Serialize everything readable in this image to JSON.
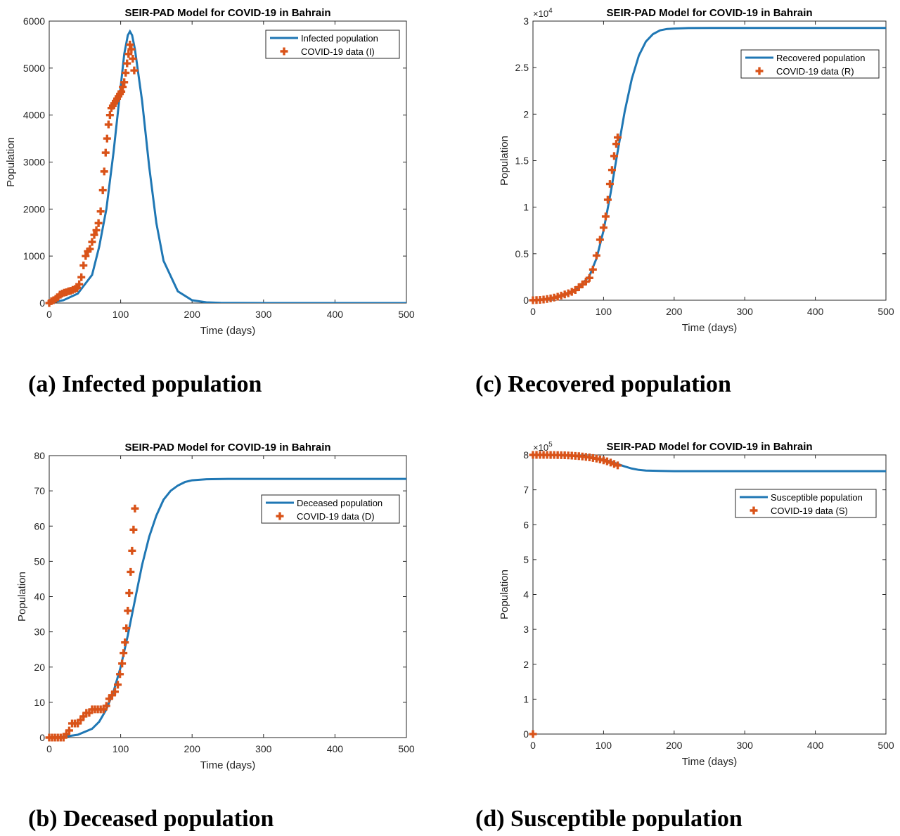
{
  "colors": {
    "model_line": "#1f77b4",
    "data_marker": "#d95319",
    "axis": "#262626"
  },
  "captions": {
    "a": "(a) Infected population",
    "b": "(b) Deceased population",
    "c": "(c) Recovered population",
    "d": "(d) Susceptible population"
  },
  "chart_data": [
    {
      "id": "a",
      "type": "line",
      "title": "SEIR-PAD Model for COVID-19 in Bahrain",
      "xlabel": "Time (days)",
      "ylabel": "Population",
      "xlim": [
        0,
        500
      ],
      "ylim": [
        0,
        6000
      ],
      "xticks": [
        0,
        100,
        200,
        300,
        400,
        500
      ],
      "yticks": [
        0,
        1000,
        2000,
        3000,
        4000,
        5000,
        6000
      ],
      "ytick_labels": [
        "0",
        "1000",
        "2000",
        "3000",
        "4000",
        "5000",
        "6000"
      ],
      "exponent_label": "",
      "legend_position": "top-right",
      "series": [
        {
          "name": "Infected population",
          "style": "line",
          "x": [
            0,
            20,
            40,
            60,
            70,
            80,
            90,
            100,
            105,
            110,
            113,
            116,
            120,
            130,
            140,
            150,
            160,
            180,
            200,
            220,
            240,
            260,
            300,
            400,
            500
          ],
          "y": [
            0,
            60,
            200,
            600,
            1200,
            2000,
            3200,
            4600,
            5300,
            5700,
            5780,
            5700,
            5400,
            4300,
            2900,
            1700,
            900,
            250,
            60,
            15,
            4,
            1,
            0,
            0,
            0
          ]
        },
        {
          "name": "COVID-19 data (I)",
          "style": "marker",
          "x": [
            0,
            3,
            6,
            9,
            12,
            15,
            18,
            21,
            24,
            27,
            30,
            33,
            36,
            39,
            42,
            45,
            48,
            51,
            54,
            57,
            60,
            63,
            66,
            69,
            72,
            75,
            77,
            79,
            81,
            83,
            85,
            87,
            89,
            91,
            93,
            95,
            97,
            99,
            101,
            103,
            105,
            107,
            109,
            111,
            113,
            115,
            117,
            119
          ],
          "y": [
            0,
            40,
            60,
            90,
            120,
            180,
            200,
            220,
            230,
            250,
            260,
            280,
            300,
            320,
            400,
            550,
            800,
            1000,
            1100,
            1150,
            1300,
            1450,
            1550,
            1700,
            1950,
            2400,
            2800,
            3200,
            3500,
            3800,
            4000,
            4150,
            4200,
            4250,
            4300,
            4350,
            4400,
            4450,
            4500,
            4600,
            4700,
            4900,
            5100,
            5300,
            5500,
            5400,
            5200,
            4950
          ]
        }
      ]
    },
    {
      "id": "c",
      "type": "line",
      "title": "SEIR-PAD Model for COVID-19 in Bahrain",
      "xlabel": "Time (days)",
      "ylabel": "Population",
      "xlim": [
        0,
        500
      ],
      "ylim": [
        0,
        30000
      ],
      "xticks": [
        0,
        100,
        200,
        300,
        400,
        500
      ],
      "yticks": [
        0,
        5000,
        10000,
        15000,
        20000,
        25000,
        30000
      ],
      "ytick_labels": [
        "0",
        "0.5",
        "1",
        "1.5",
        "2",
        "2.5",
        "3"
      ],
      "exponent_label": "×10^4",
      "legend_position": "top-right",
      "series": [
        {
          "name": "Recovered population",
          "style": "line",
          "x": [
            0,
            20,
            40,
            60,
            80,
            90,
            100,
            110,
            120,
            130,
            140,
            150,
            160,
            170,
            180,
            190,
            200,
            220,
            250,
            300,
            400,
            500
          ],
          "y": [
            0,
            100,
            400,
            1000,
            2600,
            4500,
            7500,
            11500,
            16000,
            20300,
            23800,
            26300,
            27800,
            28600,
            29000,
            29150,
            29200,
            29250,
            29260,
            29260,
            29260,
            29260
          ]
        },
        {
          "name": "COVID-19 data (R)",
          "style": "marker",
          "x": [
            0,
            5,
            10,
            15,
            20,
            25,
            30,
            35,
            40,
            45,
            50,
            55,
            60,
            65,
            70,
            75,
            80,
            85,
            90,
            95,
            100,
            103,
            106,
            109,
            112,
            115,
            118,
            120
          ],
          "y": [
            0,
            20,
            40,
            80,
            130,
            200,
            280,
            380,
            500,
            620,
            750,
            900,
            1100,
            1400,
            1700,
            2000,
            2400,
            3300,
            4800,
            6500,
            7800,
            9000,
            10800,
            12500,
            14000,
            15500,
            16800,
            17500
          ]
        }
      ]
    },
    {
      "id": "b",
      "type": "line",
      "title": "SEIR-PAD Model for COVID-19 in Bahrain",
      "xlabel": "Time (days)",
      "ylabel": "Population",
      "xlim": [
        0,
        500
      ],
      "ylim": [
        0,
        80
      ],
      "xticks": [
        0,
        100,
        200,
        300,
        400,
        500
      ],
      "yticks": [
        0,
        10,
        20,
        30,
        40,
        50,
        60,
        70,
        80
      ],
      "ytick_labels": [
        "0",
        "10",
        "20",
        "30",
        "40",
        "50",
        "60",
        "70",
        "80"
      ],
      "exponent_label": "",
      "legend_position": "top-right",
      "series": [
        {
          "name": "Deceased population",
          "style": "line",
          "x": [
            0,
            20,
            40,
            60,
            70,
            80,
            90,
            100,
            110,
            120,
            130,
            140,
            150,
            160,
            170,
            180,
            190,
            200,
            220,
            250,
            300,
            400,
            500
          ],
          "y": [
            0,
            0.2,
            0.8,
            2.5,
            4.5,
            8,
            13,
            20,
            29,
            39,
            49,
            57,
            63,
            67.5,
            70,
            71.5,
            72.5,
            73,
            73.3,
            73.4,
            73.4,
            73.4,
            73.4
          ]
        },
        {
          "name": "COVID-19 data (D)",
          "style": "marker",
          "x": [
            0,
            4,
            8,
            12,
            16,
            20,
            24,
            28,
            32,
            36,
            40,
            44,
            48,
            52,
            56,
            60,
            64,
            68,
            72,
            76,
            80,
            84,
            88,
            92,
            96,
            99,
            102,
            104,
            106,
            108,
            110,
            112,
            114,
            116,
            118,
            120
          ],
          "y": [
            0,
            0,
            0,
            0,
            0,
            0,
            1,
            2,
            4,
            4,
            4,
            5,
            6,
            7,
            7,
            8,
            8,
            8,
            8,
            8,
            9,
            11,
            12,
            13,
            15,
            18,
            21,
            24,
            27,
            31,
            36,
            41,
            47,
            53,
            59,
            65
          ]
        }
      ]
    },
    {
      "id": "d",
      "type": "line",
      "title": "SEIR-PAD Model for COVID-19 in Bahrain",
      "xlabel": "Time (days)",
      "ylabel": "Population",
      "xlim": [
        0,
        500
      ],
      "ylim": [
        0,
        800000
      ],
      "xticks": [
        0,
        100,
        200,
        300,
        400,
        500
      ],
      "yticks": [
        0,
        100000,
        200000,
        300000,
        400000,
        500000,
        600000,
        700000,
        800000
      ],
      "ytick_labels": [
        "0",
        "1",
        "2",
        "3",
        "4",
        "5",
        "6",
        "7",
        "8"
      ],
      "exponent_label": "×10^5",
      "legend_position": "top-right",
      "series": [
        {
          "name": "Susceptible population",
          "style": "line",
          "x": [
            0,
            20,
            40,
            60,
            80,
            100,
            110,
            120,
            130,
            140,
            150,
            160,
            180,
            200,
            250,
            300,
            400,
            500
          ],
          "y": [
            800000,
            799800,
            799000,
            797500,
            794000,
            787000,
            781000,
            774000,
            767000,
            761000,
            757000,
            755000,
            754000,
            753500,
            753400,
            753400,
            753400,
            753400
          ]
        },
        {
          "name": "COVID-19 data (S)",
          "style": "marker",
          "x": [
            0,
            0,
            5,
            10,
            15,
            20,
            25,
            30,
            35,
            40,
            45,
            50,
            55,
            60,
            65,
            70,
            75,
            80,
            85,
            90,
            95,
            100,
            105,
            110,
            115,
            120
          ],
          "y": [
            0,
            800000,
            800000,
            800000,
            800000,
            799900,
            799800,
            799700,
            799500,
            799300,
            799000,
            798600,
            798000,
            797300,
            796500,
            795500,
            794300,
            793000,
            791300,
            789300,
            787000,
            784500,
            781500,
            778000,
            774000,
            770000
          ]
        }
      ]
    }
  ]
}
